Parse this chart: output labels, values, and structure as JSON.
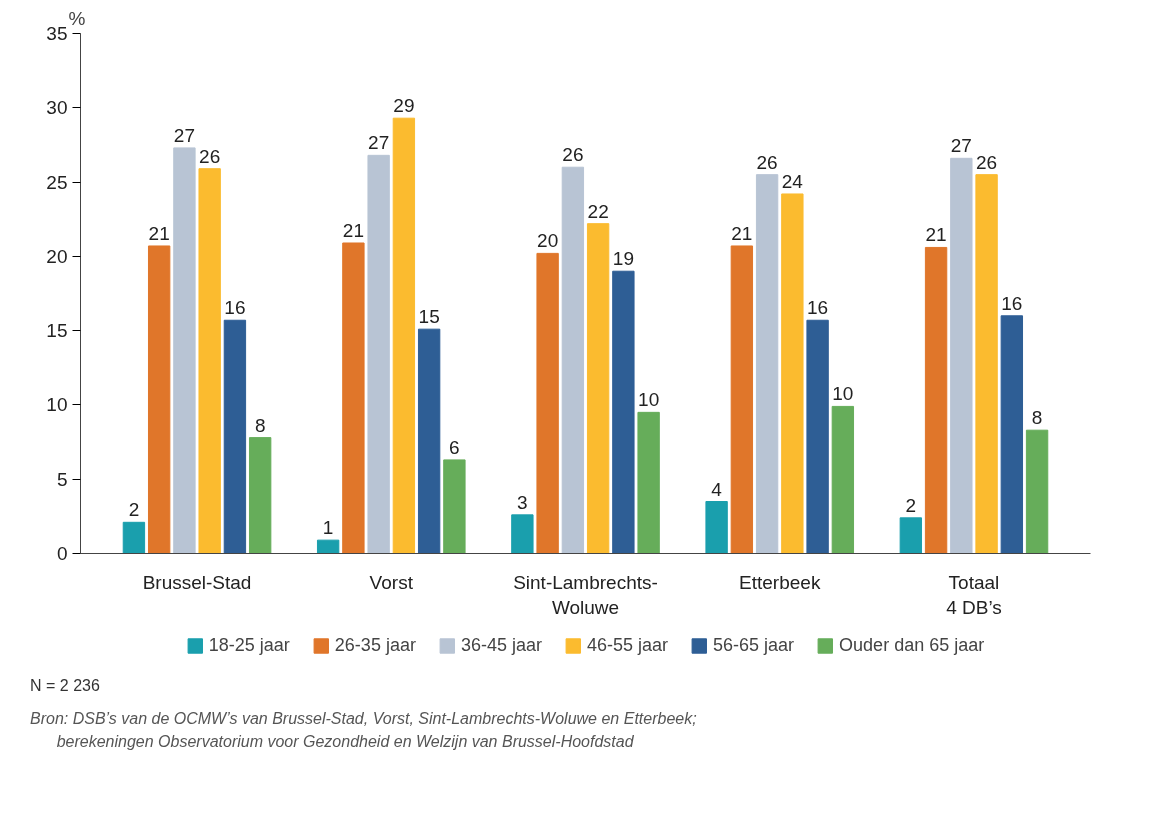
{
  "chart_data": {
    "type": "bar",
    "ylabel": "%",
    "categories": [
      "Brussel-Stad",
      "Vorst",
      "Sint-Lambrechts-\nWoluwe",
      "Etterbeek",
      "Totaal\n4 DB’s"
    ],
    "series": [
      {
        "name": "18-25 jaar",
        "color": "#1a9fad",
        "values": [
          2.1,
          0.9,
          2.6,
          3.5,
          2.4
        ],
        "value_labels": [
          "2",
          "1",
          "3",
          "4",
          "2"
        ]
      },
      {
        "name": "26-35 jaar",
        "color": "#e0762a",
        "values": [
          20.7,
          20.9,
          20.2,
          20.7,
          20.6
        ],
        "value_labels": [
          "21",
          "21",
          "20",
          "21",
          "21"
        ]
      },
      {
        "name": "36-45 jaar",
        "color": "#b8c4d4",
        "values": [
          27.3,
          26.8,
          26.0,
          25.5,
          26.6
        ],
        "value_labels": [
          "27",
          "27",
          "26",
          "26",
          "27"
        ]
      },
      {
        "name": "46-55 jaar",
        "color": "#fbbb2f",
        "values": [
          25.9,
          29.3,
          22.2,
          24.2,
          25.5
        ],
        "value_labels": [
          "26",
          "29",
          "22",
          "24",
          "26"
        ]
      },
      {
        "name": "56-65 jaar",
        "color": "#2e5e95",
        "values": [
          15.7,
          15.1,
          19.0,
          15.7,
          16.0
        ],
        "value_labels": [
          "16",
          "15",
          "19",
          "16",
          "16"
        ]
      },
      {
        "name": "Ouder dan 65 jaar",
        "color": "#66ad5a",
        "values": [
          7.8,
          6.3,
          9.5,
          9.9,
          8.3
        ],
        "value_labels": [
          "8",
          "6",
          "10",
          "10",
          "8"
        ]
      }
    ],
    "ylim": [
      0,
      35
    ],
    "yticks": [
      0,
      5,
      10,
      15,
      20,
      25,
      30,
      35
    ],
    "grid": false,
    "legend": "bottom",
    "annotations": [
      "N = 2 236",
      "Bron: DSB’s van de OCMW’s van Brussel-Stad, Vorst, Sint-Lambrechts-Woluwe en Etterbeek;\n      berekeningen Observatorium voor Gezondheid en Welzijn van Brussel-Hoofdstad"
    ]
  }
}
